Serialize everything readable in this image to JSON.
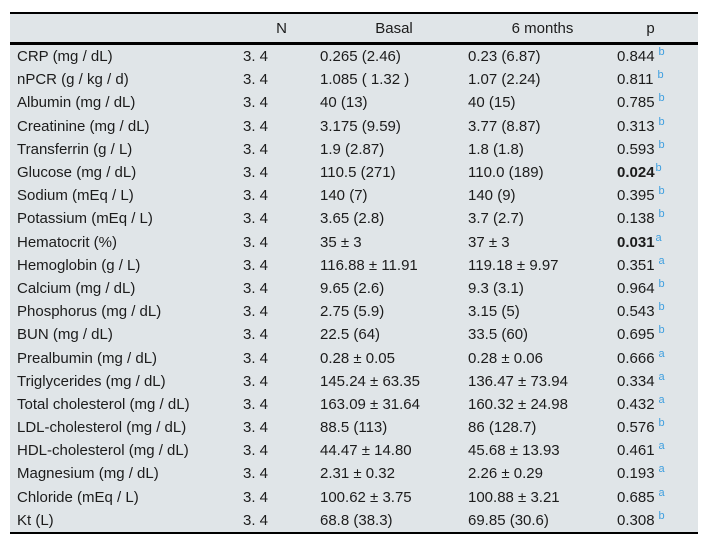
{
  "page": {
    "background_color": "#ffffff"
  },
  "table": {
    "background_color": "#e0e5e8",
    "border_color": "#000000",
    "text_color": "#1c1c1c",
    "superscript_color": "#3f9fdf",
    "headers": {
      "label": "",
      "n": "N",
      "basal": "Basal",
      "six_months": "6 months",
      "p": "p"
    },
    "rows": [
      {
        "label": "CRP (mg / dL)",
        "n": "3. 4",
        "basal": "0.265 (2.46)",
        "six_months": "0.23 (6.87)",
        "p": "0.844",
        "p_sup": "b",
        "p_bold": false
      },
      {
        "label": "nPCR (g / kg / d)",
        "n": "3. 4",
        "basal": "1.085 ( 1.32 )",
        "six_months": "1.07 (2.24)",
        "p": "0.811",
        "p_sup": "b",
        "p_bold": false
      },
      {
        "label": "Albumin (mg / dL)",
        "n": "3. 4",
        "basal": "40 (13)",
        "six_months": "40 (15)",
        "p": "0.785",
        "p_sup": "b",
        "p_bold": false
      },
      {
        "label": "Creatinine (mg / dL)",
        "n": "3. 4",
        "basal": "3.175 (9.59)",
        "six_months": "3.77 (8.87)",
        "p": "0.313",
        "p_sup": "b",
        "p_bold": false
      },
      {
        "label": "Transferrin (g / L)",
        "n": "3. 4",
        "basal": "1.9 (2.87)",
        "six_months": "1.8 (1.8)",
        "p": "0.593",
        "p_sup": "b",
        "p_bold": false
      },
      {
        "label": "Glucose (mg / dL)",
        "n": "3. 4",
        "basal": "110.5 (271)",
        "six_months": "110.0 (189)",
        "p": "0.024",
        "p_sup": "b",
        "p_bold": true
      },
      {
        "label": "Sodium (mEq / L)",
        "n": "3. 4",
        "basal": "140 (7)",
        "six_months": "140 (9)",
        "p": "0.395",
        "p_sup": "b",
        "p_bold": false
      },
      {
        "label": "Potassium (mEq / L)",
        "n": "3. 4",
        "basal": "3.65 (2.8)",
        "six_months": "3.7 (2.7)",
        "p": "0.138",
        "p_sup": "b",
        "p_bold": false
      },
      {
        "label": "Hematocrit (%)",
        "n": "3. 4",
        "basal": "35 ± 3",
        "six_months": "37 ± 3",
        "p": "0.031",
        "p_sup": "a",
        "p_bold": true
      },
      {
        "label": "Hemoglobin (g / L)",
        "n": "3. 4",
        "basal": "116.88 ± 11.91",
        "six_months": "119.18 ± 9.97",
        "p": "0.351",
        "p_sup": "a",
        "p_bold": false
      },
      {
        "label": "Calcium (mg / dL)",
        "n": "3. 4",
        "basal": "9.65 (2.6)",
        "six_months": "9.3 (3.1)",
        "p": "0.964",
        "p_sup": "b",
        "p_bold": false
      },
      {
        "label": "Phosphorus (mg / dL)",
        "n": "3. 4",
        "basal": "2.75 (5.9)",
        "six_months": "3.15 (5)",
        "p": "0.543",
        "p_sup": "b",
        "p_bold": false
      },
      {
        "label": "BUN (mg / dL)",
        "n": "3. 4",
        "basal": "22.5 (64)",
        "six_months": "33.5 (60)",
        "p": "0.695",
        "p_sup": "b",
        "p_bold": false
      },
      {
        "label": "Prealbumin (mg / dL)",
        "n": "3. 4",
        "basal": "0.28 ± 0.05",
        "six_months": "0.28 ± 0.06",
        "p": "0.666",
        "p_sup": "a",
        "p_bold": false
      },
      {
        "label": "Triglycerides (mg / dL)",
        "n": "3. 4",
        "basal": "145.24 ± 63.35",
        "six_months": "136.47 ± 73.94",
        "p": "0.334",
        "p_sup": "a",
        "p_bold": false
      },
      {
        "label": "Total cholesterol (mg / dL)",
        "n": "3. 4",
        "basal": "163.09 ± 31.64",
        "six_months": "160.32 ± 24.98",
        "p": "0.432",
        "p_sup": "a",
        "p_bold": false
      },
      {
        "label": "LDL-cholesterol (mg / dL)",
        "n": "3. 4",
        "basal": "88.5 (113)",
        "six_months": "86 (128.7)",
        "p": "0.576",
        "p_sup": "b",
        "p_bold": false
      },
      {
        "label": "HDL-cholesterol (mg / dL)",
        "n": "3. 4",
        "basal": "44.47 ± 14.80",
        "six_months": "45.68 ± 13.93",
        "p": "0.461",
        "p_sup": "a",
        "p_bold": false
      },
      {
        "label": "Magnesium (mg / dL)",
        "n": "3. 4",
        "basal": "2.31 ± 0.32",
        "six_months": "2.26 ± 0.29",
        "p": "0.193",
        "p_sup": "a",
        "p_bold": false
      },
      {
        "label": "Chloride (mEq / L)",
        "n": "3. 4",
        "basal": "100.62 ± 3.75",
        "six_months": "100.88 ± 3.21",
        "p": "0.685",
        "p_sup": "a",
        "p_bold": false
      },
      {
        "label": "Kt (L)",
        "n": "3. 4",
        "basal": "68.8 (38.3)",
        "six_months": "69.85 (30.6)",
        "p": "0.308",
        "p_sup": "b",
        "p_bold": false
      }
    ]
  }
}
